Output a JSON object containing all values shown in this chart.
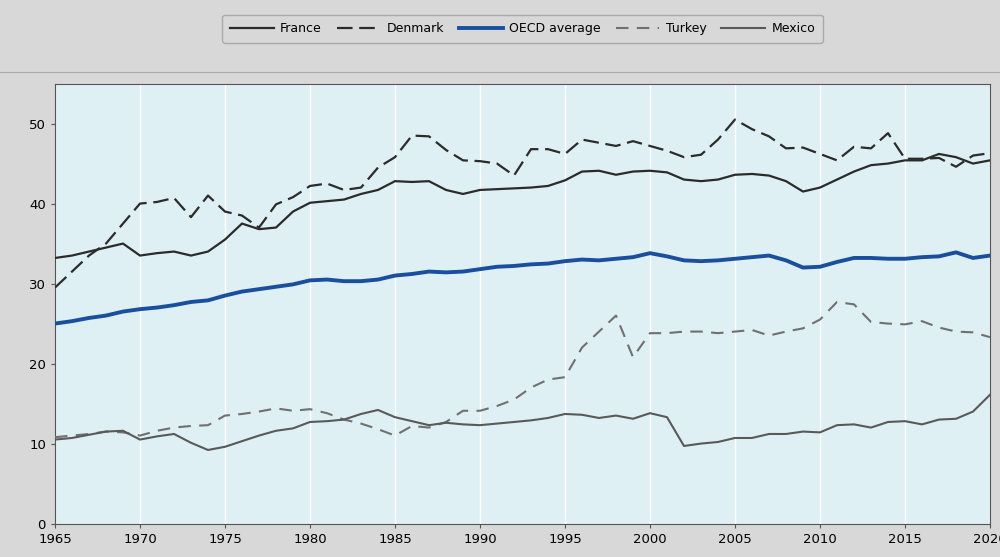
{
  "years": [
    1965,
    1966,
    1967,
    1968,
    1969,
    1970,
    1971,
    1972,
    1973,
    1974,
    1975,
    1976,
    1977,
    1978,
    1979,
    1980,
    1981,
    1982,
    1983,
    1984,
    1985,
    1986,
    1987,
    1988,
    1989,
    1990,
    1991,
    1992,
    1993,
    1994,
    1995,
    1996,
    1997,
    1998,
    1999,
    2000,
    2001,
    2002,
    2003,
    2004,
    2005,
    2006,
    2007,
    2008,
    2009,
    2010,
    2011,
    2012,
    2013,
    2014,
    2015,
    2016,
    2017,
    2018,
    2019,
    2020
  ],
  "france": [
    33.2,
    33.5,
    34.0,
    34.5,
    35.0,
    33.5,
    33.8,
    34.0,
    33.5,
    34.0,
    35.5,
    37.5,
    36.8,
    37.0,
    39.0,
    40.1,
    40.3,
    40.5,
    41.2,
    41.7,
    42.8,
    42.7,
    42.8,
    41.7,
    41.2,
    41.7,
    41.8,
    41.9,
    42.0,
    42.2,
    42.9,
    44.0,
    44.1,
    43.6,
    44.0,
    44.1,
    43.9,
    43.0,
    42.8,
    43.0,
    43.6,
    43.7,
    43.5,
    42.8,
    41.5,
    42.0,
    43.0,
    44.0,
    44.8,
    45.0,
    45.4,
    45.4,
    46.2,
    45.8,
    45.0,
    45.4
  ],
  "denmark": [
    29.5,
    31.5,
    33.5,
    35.0,
    37.5,
    40.0,
    40.2,
    40.7,
    38.3,
    41.0,
    39.0,
    38.5,
    37.0,
    39.9,
    40.8,
    42.2,
    42.5,
    41.7,
    42.0,
    44.5,
    45.8,
    48.5,
    48.4,
    46.7,
    45.4,
    45.3,
    45.0,
    43.5,
    46.8,
    46.8,
    46.2,
    48.0,
    47.6,
    47.2,
    47.8,
    47.2,
    46.6,
    45.8,
    46.1,
    48.0,
    50.5,
    49.3,
    48.4,
    46.9,
    47.0,
    46.2,
    45.4,
    47.1,
    46.9,
    48.8,
    45.6,
    45.6,
    45.7,
    44.6,
    46.0,
    46.3
  ],
  "oecd_avg": [
    25.0,
    25.3,
    25.7,
    26.0,
    26.5,
    26.8,
    27.0,
    27.3,
    27.7,
    27.9,
    28.5,
    29.0,
    29.3,
    29.6,
    29.9,
    30.4,
    30.5,
    30.3,
    30.3,
    30.5,
    31.0,
    31.2,
    31.5,
    31.4,
    31.5,
    31.8,
    32.1,
    32.2,
    32.4,
    32.5,
    32.8,
    33.0,
    32.9,
    33.1,
    33.3,
    33.8,
    33.4,
    32.9,
    32.8,
    32.9,
    33.1,
    33.3,
    33.5,
    32.9,
    32.0,
    32.1,
    32.7,
    33.2,
    33.2,
    33.1,
    33.1,
    33.3,
    33.4,
    33.9,
    33.2,
    33.5
  ],
  "turkey": [
    10.8,
    11.0,
    11.2,
    11.5,
    11.4,
    11.0,
    11.6,
    12.0,
    12.2,
    12.3,
    13.5,
    13.7,
    14.0,
    14.4,
    14.1,
    14.3,
    13.8,
    13.0,
    12.5,
    11.8,
    11.0,
    12.2,
    12.0,
    12.7,
    14.1,
    14.1,
    14.7,
    15.5,
    17.0,
    18.0,
    18.3,
    22.0,
    24.0,
    26.0,
    20.8,
    23.8,
    23.8,
    24.0,
    24.0,
    23.8,
    24.0,
    24.2,
    23.5,
    24.0,
    24.4,
    25.5,
    27.7,
    27.4,
    25.2,
    25.0,
    24.9,
    25.3,
    24.5,
    24.0,
    23.9,
    23.3
  ],
  "mexico": [
    10.5,
    10.7,
    11.1,
    11.5,
    11.6,
    10.5,
    10.9,
    11.2,
    10.1,
    9.2,
    9.6,
    10.3,
    11.0,
    11.6,
    11.9,
    12.7,
    12.8,
    13.0,
    13.7,
    14.2,
    13.3,
    12.8,
    12.3,
    12.6,
    12.4,
    12.3,
    12.5,
    12.7,
    12.9,
    13.2,
    13.7,
    13.6,
    13.2,
    13.5,
    13.1,
    13.8,
    13.3,
    9.7,
    10.0,
    10.2,
    10.7,
    10.7,
    11.2,
    11.2,
    11.5,
    11.4,
    12.3,
    12.4,
    12.0,
    12.7,
    12.8,
    12.4,
    13.0,
    13.1,
    14.0,
    16.1
  ],
  "background_color": "#dff0f5",
  "outer_background": "#d8d8d8",
  "legend_background": "#d8d8d8",
  "france_color": "#2b2b2b",
  "denmark_color": "#2b2b2b",
  "oecd_color": "#1a4f9e",
  "turkey_color": "#707070",
  "mexico_color": "#595959",
  "ylim": [
    0,
    55
  ],
  "yticks": [
    0,
    10,
    20,
    30,
    40,
    50
  ],
  "xlim": [
    1965,
    2020
  ],
  "xticks": [
    1965,
    1970,
    1975,
    1980,
    1985,
    1990,
    1995,
    2000,
    2005,
    2010,
    2015,
    2020
  ]
}
